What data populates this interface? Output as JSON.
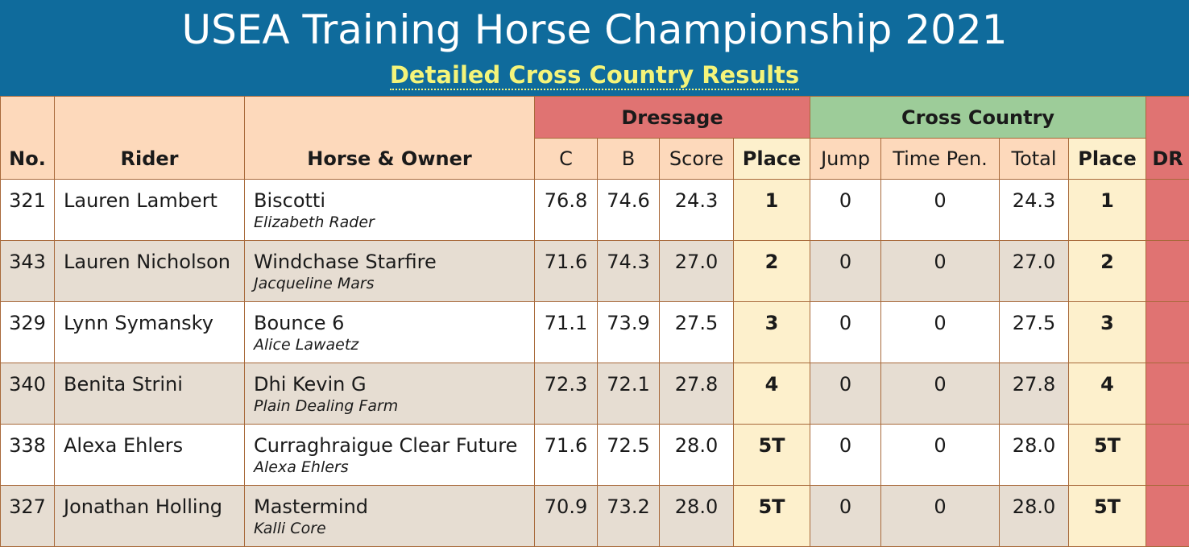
{
  "header": {
    "title": "USEA Training Horse Championship 2021",
    "subtitle": "Detailed Cross Country Results"
  },
  "columns": {
    "no": "No.",
    "rider": "Rider",
    "horse_owner": "Horse & Owner",
    "dressage_group": "Dressage",
    "c": "C",
    "b": "B",
    "score": "Score",
    "dressage_place": "Place",
    "cross_country_group": "Cross Country",
    "jump": "Jump",
    "time_pen": "Time Pen.",
    "total": "Total",
    "xc_place": "Place",
    "dr": "DR"
  },
  "rows": [
    {
      "no": "321",
      "rider": "Lauren Lambert",
      "horse": "Biscotti",
      "owner": "Elizabeth Rader",
      "c": "76.8",
      "b": "74.6",
      "score": "24.3",
      "dressage_place": "1",
      "jump": "0",
      "time_pen": "0",
      "total": "24.3",
      "xc_place": "1"
    },
    {
      "no": "343",
      "rider": "Lauren Nicholson",
      "horse": "Windchase Starfire",
      "owner": "Jacqueline Mars",
      "c": "71.6",
      "b": "74.3",
      "score": "27.0",
      "dressage_place": "2",
      "jump": "0",
      "time_pen": "0",
      "total": "27.0",
      "xc_place": "2"
    },
    {
      "no": "329",
      "rider": "Lynn Symansky",
      "horse": "Bounce 6",
      "owner": "Alice Lawaetz",
      "c": "71.1",
      "b": "73.9",
      "score": "27.5",
      "dressage_place": "3",
      "jump": "0",
      "time_pen": "0",
      "total": "27.5",
      "xc_place": "3"
    },
    {
      "no": "340",
      "rider": "Benita Strini",
      "horse": "Dhi Kevin G",
      "owner": "Plain Dealing Farm",
      "c": "72.3",
      "b": "72.1",
      "score": "27.8",
      "dressage_place": "4",
      "jump": "0",
      "time_pen": "0",
      "total": "27.8",
      "xc_place": "4"
    },
    {
      "no": "338",
      "rider": "Alexa Ehlers",
      "horse": "Curraghraigue Clear Future",
      "owner": "Alexa Ehlers",
      "c": "71.6",
      "b": "72.5",
      "score": "28.0",
      "dressage_place": "5T",
      "jump": "0",
      "time_pen": "0",
      "total": "28.0",
      "xc_place": "5T"
    },
    {
      "no": "327",
      "rider": "Jonathan Holling",
      "horse": "Mastermind",
      "owner": "Kalli Core",
      "c": "70.9",
      "b": "73.2",
      "score": "28.0",
      "dressage_place": "5T",
      "jump": "0",
      "time_pen": "0",
      "total": "28.0",
      "xc_place": "5T"
    }
  ],
  "colors": {
    "header_bg": "#0f6b9c",
    "subtitle": "#f4f47a",
    "dressage_header": "#e07372",
    "cross_country_header": "#9dcc99",
    "place_column": "#fdf0cc",
    "even_row": "#e6ddd2"
  }
}
